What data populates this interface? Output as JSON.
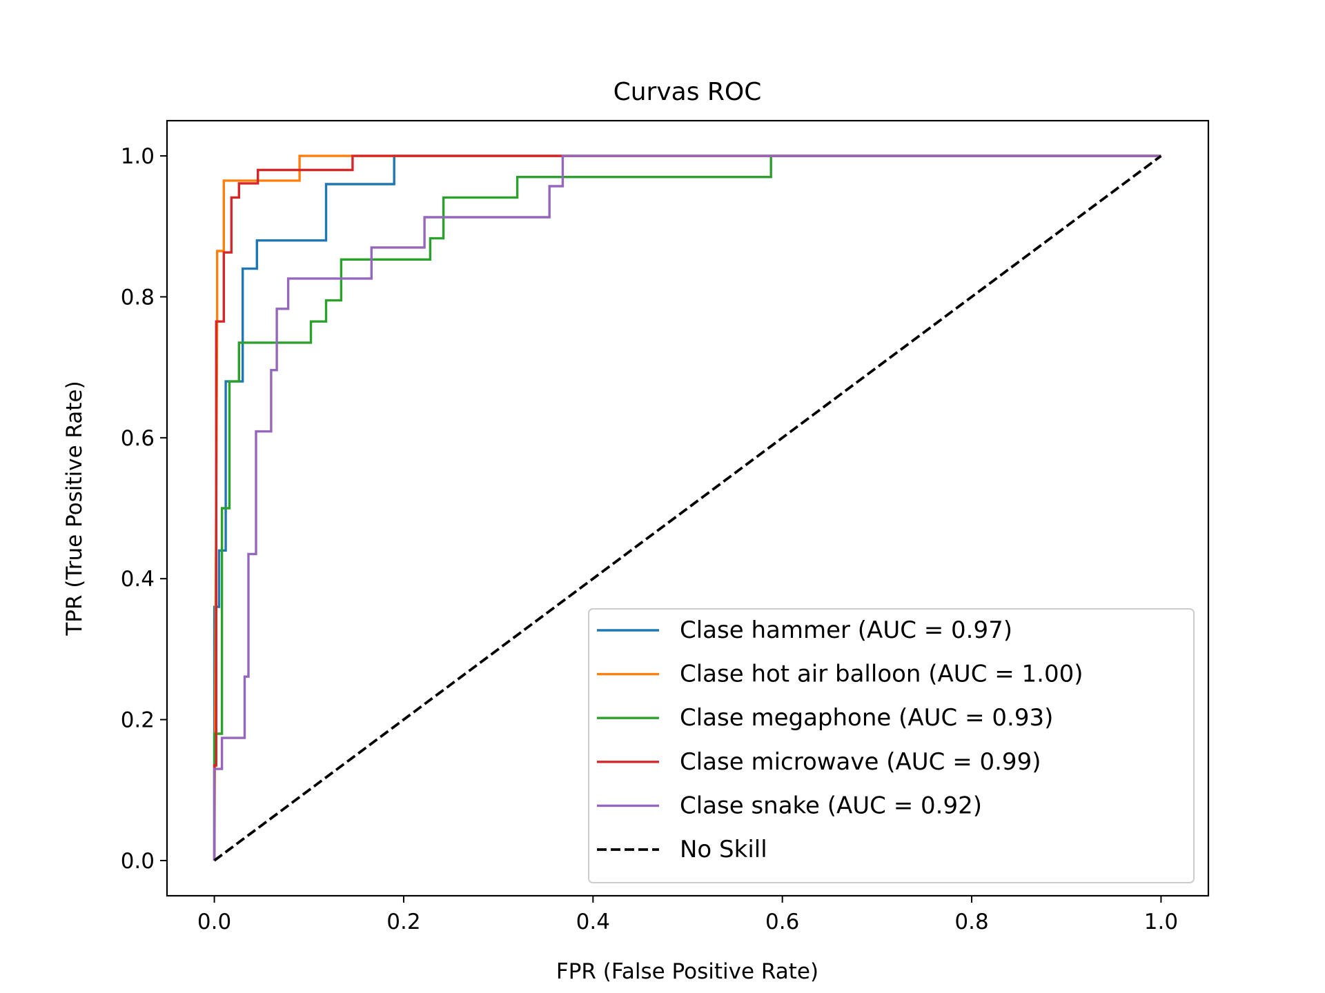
{
  "chart_data": {
    "type": "line",
    "title": "Curvas ROC",
    "xlabel": "FPR (False Positive Rate)",
    "ylabel": "TPR (True Positive Rate)",
    "xlim": [
      -0.05,
      1.05
    ],
    "ylim": [
      -0.05,
      1.05
    ],
    "xticks": [
      0.0,
      0.2,
      0.4,
      0.6,
      0.8,
      1.0
    ],
    "yticks": [
      0.0,
      0.2,
      0.4,
      0.6,
      0.8,
      1.0
    ],
    "xtick_labels": [
      "0.0",
      "0.2",
      "0.4",
      "0.6",
      "0.8",
      "1.0"
    ],
    "ytick_labels": [
      "0.0",
      "0.2",
      "0.4",
      "0.6",
      "0.8",
      "1.0"
    ],
    "grid": false,
    "legend_position": "lower-right",
    "series": [
      {
        "name": "Clase hammer (AUC = 0.97)",
        "color": "#1f77b4",
        "style": "solid",
        "x": [
          0,
          0,
          0.005,
          0.005,
          0.012,
          0.012,
          0.018,
          0.018,
          0.03,
          0.03,
          0.045,
          0.045,
          0.118,
          0.118,
          0.19,
          0.19,
          1.0
        ],
        "y": [
          0,
          0.36,
          0.36,
          0.44,
          0.44,
          0.68,
          0.68,
          0.68,
          0.68,
          0.84,
          0.84,
          0.88,
          0.88,
          0.96,
          0.96,
          1.0,
          1.0
        ]
      },
      {
        "name": "Clase hot air balloon (AUC = 1.00)",
        "color": "#ff7f0e",
        "style": "solid",
        "x": [
          0,
          0.003,
          0.003,
          0.01,
          0.01,
          0.09,
          0.09,
          1.0
        ],
        "y": [
          0,
          0.77,
          0.865,
          0.865,
          0.965,
          0.965,
          1.0,
          1.0
        ]
      },
      {
        "name": "Clase megaphone (AUC = 0.93)",
        "color": "#2ca02c",
        "style": "solid",
        "x": [
          0,
          0,
          0.008,
          0.008,
          0.016,
          0.016,
          0.026,
          0.026,
          0.102,
          0.102,
          0.118,
          0.118,
          0.134,
          0.134,
          0.228,
          0.228,
          0.242,
          0.242,
          0.32,
          0.32,
          0.588,
          0.588,
          1.0
        ],
        "y": [
          0,
          0.18,
          0.18,
          0.5,
          0.5,
          0.68,
          0.68,
          0.735,
          0.735,
          0.765,
          0.765,
          0.795,
          0.795,
          0.853,
          0.853,
          0.883,
          0.883,
          0.941,
          0.941,
          0.97,
          0.97,
          1.0,
          1.0
        ]
      },
      {
        "name": "Clase microwave (AUC = 0.99)",
        "color": "#d62728",
        "style": "solid",
        "x": [
          0,
          0,
          0.002,
          0.002,
          0.01,
          0.01,
          0.018,
          0.018,
          0.026,
          0.026,
          0.046,
          0.046,
          0.146,
          0.146,
          1.0
        ],
        "y": [
          0,
          0.135,
          0.135,
          0.765,
          0.765,
          0.863,
          0.863,
          0.941,
          0.941,
          0.961,
          0.961,
          0.98,
          0.98,
          1.0,
          1.0
        ]
      },
      {
        "name": "Clase snake (AUC = 0.92)",
        "color": "#9467bd",
        "style": "solid",
        "x": [
          0,
          0,
          0.008,
          0.008,
          0.032,
          0.032,
          0.036,
          0.036,
          0.044,
          0.044,
          0.06,
          0.06,
          0.066,
          0.066,
          0.078,
          0.078,
          0.166,
          0.166,
          0.222,
          0.222,
          0.354,
          0.354,
          0.368,
          0.368,
          1.0
        ],
        "y": [
          0,
          0.13,
          0.13,
          0.174,
          0.174,
          0.261,
          0.261,
          0.435,
          0.435,
          0.609,
          0.609,
          0.696,
          0.696,
          0.783,
          0.783,
          0.826,
          0.826,
          0.87,
          0.87,
          0.913,
          0.913,
          0.957,
          0.957,
          1.0,
          1.0
        ]
      },
      {
        "name": "No Skill",
        "color": "#000000",
        "style": "dashed",
        "x": [
          0,
          1
        ],
        "y": [
          0,
          1
        ]
      }
    ]
  }
}
